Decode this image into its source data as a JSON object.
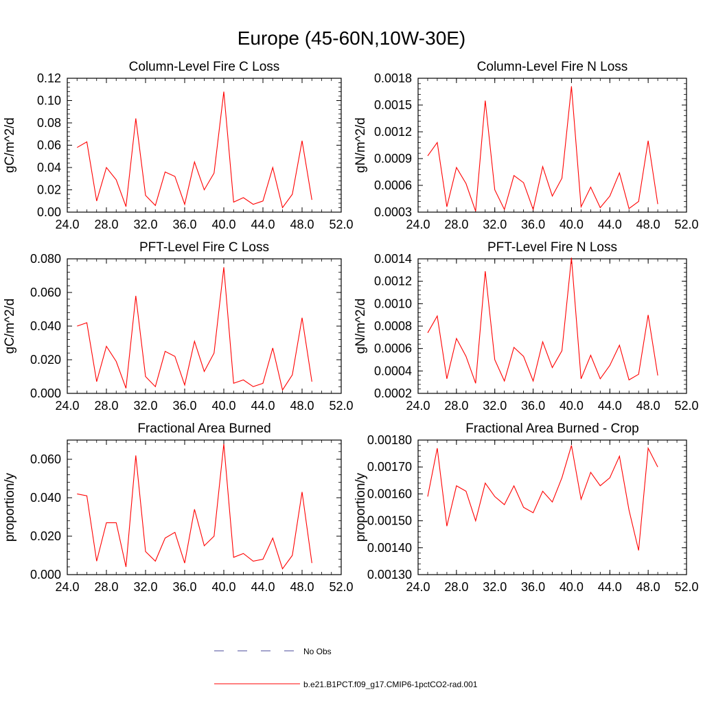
{
  "figure": {
    "title": "Europe (45-60N,10W-30E)"
  },
  "legend": {
    "entries": [
      {
        "label": "No Obs",
        "color": "#4a4a9a",
        "dash": "dashed"
      },
      {
        "label": "b.e21.B1PCT.f09_g17.CMIP6-1pctCO2-rad.001",
        "color": "#ff0000",
        "dash": "solid"
      }
    ]
  },
  "colors": {
    "series": "#ff0000",
    "axis": "#000000"
  },
  "chart_data": [
    {
      "type": "line",
      "title": "Column-Level Fire C Loss",
      "xlabel": "",
      "ylabel": "gC/m^2/d",
      "xlim": [
        24,
        52
      ],
      "ylim": [
        0,
        0.12
      ],
      "xticks": [
        "24.0",
        "28.0",
        "32.0",
        "36.0",
        "40.0",
        "44.0",
        "48.0",
        "52.0"
      ],
      "yticks": [
        "0.00",
        "0.02",
        "0.04",
        "0.06",
        "0.08",
        "0.10",
        "0.12"
      ],
      "x": [
        25,
        26,
        27,
        28,
        29,
        30,
        31,
        32,
        33,
        34,
        35,
        36,
        37,
        38,
        39,
        40,
        41,
        42,
        43,
        44,
        45,
        46,
        47,
        48,
        49
      ],
      "series": [
        {
          "name": "b.e21.B1PCT.f09_g17.CMIP6-1pctCO2-rad.001",
          "values": [
            0.058,
            0.063,
            0.01,
            0.04,
            0.029,
            0.005,
            0.084,
            0.015,
            0.006,
            0.036,
            0.032,
            0.007,
            0.045,
            0.02,
            0.035,
            0.108,
            0.009,
            0.013,
            0.007,
            0.01,
            0.04,
            0.004,
            0.016,
            0.064,
            0.011
          ]
        }
      ]
    },
    {
      "type": "line",
      "title": "Column-Level Fire N Loss",
      "xlabel": "",
      "ylabel": "gN/m^2/d",
      "xlim": [
        24,
        52
      ],
      "ylim": [
        0.0003,
        0.0018
      ],
      "xticks": [
        "24.0",
        "28.0",
        "32.0",
        "36.0",
        "40.0",
        "44.0",
        "48.0",
        "52.0"
      ],
      "yticks": [
        "0.0003",
        "0.0006",
        "0.0009",
        "0.0012",
        "0.0015",
        "0.0018"
      ],
      "x": [
        25,
        26,
        27,
        28,
        29,
        30,
        31,
        32,
        33,
        34,
        35,
        36,
        37,
        38,
        39,
        40,
        41,
        42,
        43,
        44,
        45,
        46,
        47,
        48,
        49
      ],
      "series": [
        {
          "name": "b.e21.B1PCT.f09_g17.CMIP6-1pctCO2-rad.001",
          "values": [
            0.00093,
            0.00108,
            0.00036,
            0.0008,
            0.00062,
            0.00031,
            0.00155,
            0.00055,
            0.00033,
            0.00071,
            0.00063,
            0.00033,
            0.00081,
            0.00048,
            0.00068,
            0.00171,
            0.00036,
            0.00058,
            0.00035,
            0.00048,
            0.00074,
            0.00034,
            0.00042,
            0.0011,
            0.00039
          ]
        }
      ]
    },
    {
      "type": "line",
      "title": "PFT-Level Fire C Loss",
      "xlabel": "",
      "ylabel": "gC/m^2/d",
      "xlim": [
        24,
        52
      ],
      "ylim": [
        0,
        0.08
      ],
      "xticks": [
        "24.0",
        "28.0",
        "32.0",
        "36.0",
        "40.0",
        "44.0",
        "48.0",
        "52.0"
      ],
      "yticks": [
        "0.000",
        "0.020",
        "0.040",
        "0.060",
        "0.080"
      ],
      "x": [
        25,
        26,
        27,
        28,
        29,
        30,
        31,
        32,
        33,
        34,
        35,
        36,
        37,
        38,
        39,
        40,
        41,
        42,
        43,
        44,
        45,
        46,
        47,
        48,
        49
      ],
      "series": [
        {
          "name": "b.e21.B1PCT.f09_g17.CMIP6-1pctCO2-rad.001",
          "values": [
            0.04,
            0.042,
            0.007,
            0.028,
            0.019,
            0.003,
            0.058,
            0.01,
            0.004,
            0.025,
            0.022,
            0.005,
            0.031,
            0.013,
            0.024,
            0.075,
            0.006,
            0.008,
            0.004,
            0.006,
            0.027,
            0.002,
            0.011,
            0.045,
            0.007
          ]
        }
      ]
    },
    {
      "type": "line",
      "title": "PFT-Level Fire N Loss",
      "xlabel": "",
      "ylabel": "gN/m^2/d",
      "xlim": [
        24,
        52
      ],
      "ylim": [
        0.0002,
        0.0014
      ],
      "xticks": [
        "24.0",
        "28.0",
        "32.0",
        "36.0",
        "40.0",
        "44.0",
        "48.0",
        "52.0"
      ],
      "yticks": [
        "0.0002",
        "0.0004",
        "0.0006",
        "0.0008",
        "0.0010",
        "0.0012",
        "0.0014"
      ],
      "x": [
        25,
        26,
        27,
        28,
        29,
        30,
        31,
        32,
        33,
        34,
        35,
        36,
        37,
        38,
        39,
        40,
        41,
        42,
        43,
        44,
        45,
        46,
        47,
        48,
        49
      ],
      "series": [
        {
          "name": "b.e21.B1PCT.f09_g17.CMIP6-1pctCO2-rad.001",
          "values": [
            0.00074,
            0.00089,
            0.00033,
            0.00069,
            0.00053,
            0.00029,
            0.00129,
            0.0005,
            0.00031,
            0.00061,
            0.00053,
            0.00031,
            0.00066,
            0.00043,
            0.00058,
            0.00141,
            0.00033,
            0.00054,
            0.00033,
            0.00045,
            0.00063,
            0.00032,
            0.00037,
            0.0009,
            0.00036
          ]
        }
      ]
    },
    {
      "type": "line",
      "title": "Fractional Area Burned",
      "xlabel": "",
      "ylabel": "proportion/y",
      "xlim": [
        24,
        52
      ],
      "ylim": [
        0,
        0.07
      ],
      "xticks": [
        "24.0",
        "28.0",
        "32.0",
        "36.0",
        "40.0",
        "44.0",
        "48.0",
        "52.0"
      ],
      "yticks": [
        "0.000",
        "0.020",
        "0.040",
        "0.060"
      ],
      "ytick_values": [
        0,
        0.02,
        0.04,
        0.06
      ],
      "x": [
        25,
        26,
        27,
        28,
        29,
        30,
        31,
        32,
        33,
        34,
        35,
        36,
        37,
        38,
        39,
        40,
        41,
        42,
        43,
        44,
        45,
        46,
        47,
        48,
        49
      ],
      "series": [
        {
          "name": "b.e21.B1PCT.f09_g17.CMIP6-1pctCO2-rad.001",
          "values": [
            0.042,
            0.041,
            0.007,
            0.027,
            0.027,
            0.004,
            0.062,
            0.012,
            0.007,
            0.019,
            0.022,
            0.006,
            0.034,
            0.015,
            0.02,
            0.068,
            0.009,
            0.011,
            0.007,
            0.008,
            0.019,
            0.003,
            0.01,
            0.043,
            0.006
          ]
        }
      ]
    },
    {
      "type": "line",
      "title": "Fractional Area Burned - Crop",
      "xlabel": "",
      "ylabel": "proportion/y",
      "xlim": [
        24,
        52
      ],
      "ylim": [
        0.0013,
        0.0018
      ],
      "xticks": [
        "24.0",
        "28.0",
        "32.0",
        "36.0",
        "40.0",
        "44.0",
        "48.0",
        "52.0"
      ],
      "yticks": [
        "0.00130",
        "0.00140",
        "0.00150",
        "0.00160",
        "0.00170",
        "0.00180"
      ],
      "x": [
        25,
        26,
        27,
        28,
        29,
        30,
        31,
        32,
        33,
        34,
        35,
        36,
        37,
        38,
        39,
        40,
        41,
        42,
        43,
        44,
        45,
        46,
        47,
        48,
        49
      ],
      "series": [
        {
          "name": "b.e21.B1PCT.f09_g17.CMIP6-1pctCO2-rad.001",
          "values": [
            0.00159,
            0.00177,
            0.00148,
            0.00163,
            0.00161,
            0.0015,
            0.00164,
            0.00159,
            0.00156,
            0.00163,
            0.00155,
            0.00153,
            0.00161,
            0.00157,
            0.00166,
            0.00178,
            0.00158,
            0.00168,
            0.00163,
            0.00166,
            0.00174,
            0.00154,
            0.00139,
            0.00177,
            0.0017
          ]
        }
      ]
    }
  ]
}
